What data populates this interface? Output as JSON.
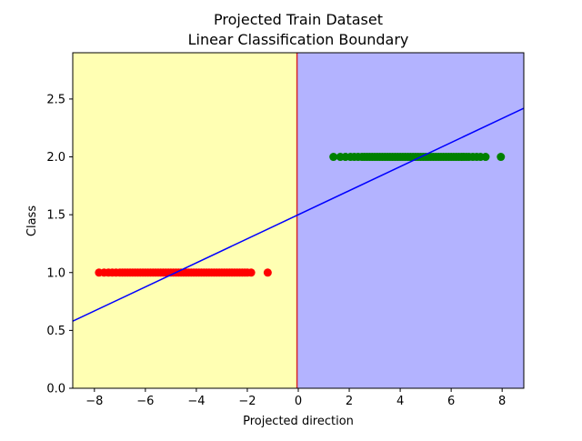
{
  "chart_data": {
    "type": "scatter",
    "title_line1": "Projected Train Dataset",
    "title_line2": "Linear Classification Boundary",
    "xlabel": "Projected direction",
    "ylabel": "Class",
    "xlim": [
      -8.85,
      8.85
    ],
    "ylim": [
      0.0,
      2.9
    ],
    "grid": false,
    "x_ticks": [
      -8,
      -6,
      -4,
      -2,
      0,
      2,
      4,
      6,
      8
    ],
    "x_tick_labels": [
      "−8",
      "−6",
      "−4",
      "−2",
      "0",
      "2",
      "4",
      "6",
      "8"
    ],
    "y_ticks": [
      0.0,
      0.5,
      1.0,
      1.5,
      2.0,
      2.5
    ],
    "y_tick_labels": [
      "0.0",
      "0.5",
      "1.0",
      "1.5",
      "2.0",
      "2.5"
    ],
    "regions": [
      {
        "x_from": -8.85,
        "x_to": -0.05,
        "color": "#ffffb3"
      },
      {
        "x_from": -0.05,
        "x_to": 8.85,
        "color": "#b3b3ff"
      }
    ],
    "boundary": {
      "x": -0.05,
      "color": "#d62728"
    },
    "regression_line": {
      "slope": 0.104,
      "intercept": 1.5,
      "color": "#0000ff"
    },
    "series": [
      {
        "class": 1,
        "color": "#ff0000",
        "y": 1.0,
        "x": [
          -7.82,
          -7.62,
          -7.45,
          -7.3,
          -7.15,
          -7.0,
          -6.9,
          -6.8,
          -6.7,
          -6.6,
          -6.5,
          -6.4,
          -6.3,
          -6.2,
          -6.1,
          -6.0,
          -5.9,
          -5.8,
          -5.7,
          -5.6,
          -5.5,
          -5.4,
          -5.3,
          -5.2,
          -5.1,
          -5.0,
          -4.9,
          -4.8,
          -4.7,
          -4.6,
          -4.5,
          -4.4,
          -4.3,
          -4.2,
          -4.1,
          -4.0,
          -3.9,
          -3.8,
          -3.7,
          -3.6,
          -3.5,
          -3.4,
          -3.3,
          -3.2,
          -3.1,
          -3.0,
          -2.9,
          -2.8,
          -2.7,
          -2.6,
          -2.5,
          -2.4,
          -2.3,
          -2.2,
          -2.1,
          -2.0,
          -1.85,
          -1.2
        ]
      },
      {
        "class": 2,
        "color": "#008000",
        "y": 2.0,
        "x": [
          1.38,
          1.65,
          1.85,
          2.05,
          2.2,
          2.35,
          2.5,
          2.6,
          2.7,
          2.8,
          2.9,
          3.0,
          3.1,
          3.2,
          3.3,
          3.4,
          3.5,
          3.6,
          3.7,
          3.8,
          3.9,
          4.0,
          4.1,
          4.2,
          4.3,
          4.4,
          4.5,
          4.6,
          4.7,
          4.8,
          4.9,
          5.0,
          5.1,
          5.2,
          5.3,
          5.4,
          5.5,
          5.6,
          5.7,
          5.8,
          5.9,
          6.0,
          6.1,
          6.2,
          6.3,
          6.4,
          6.5,
          6.6,
          6.7,
          6.85,
          7.0,
          7.15,
          7.35,
          7.95
        ]
      }
    ]
  }
}
